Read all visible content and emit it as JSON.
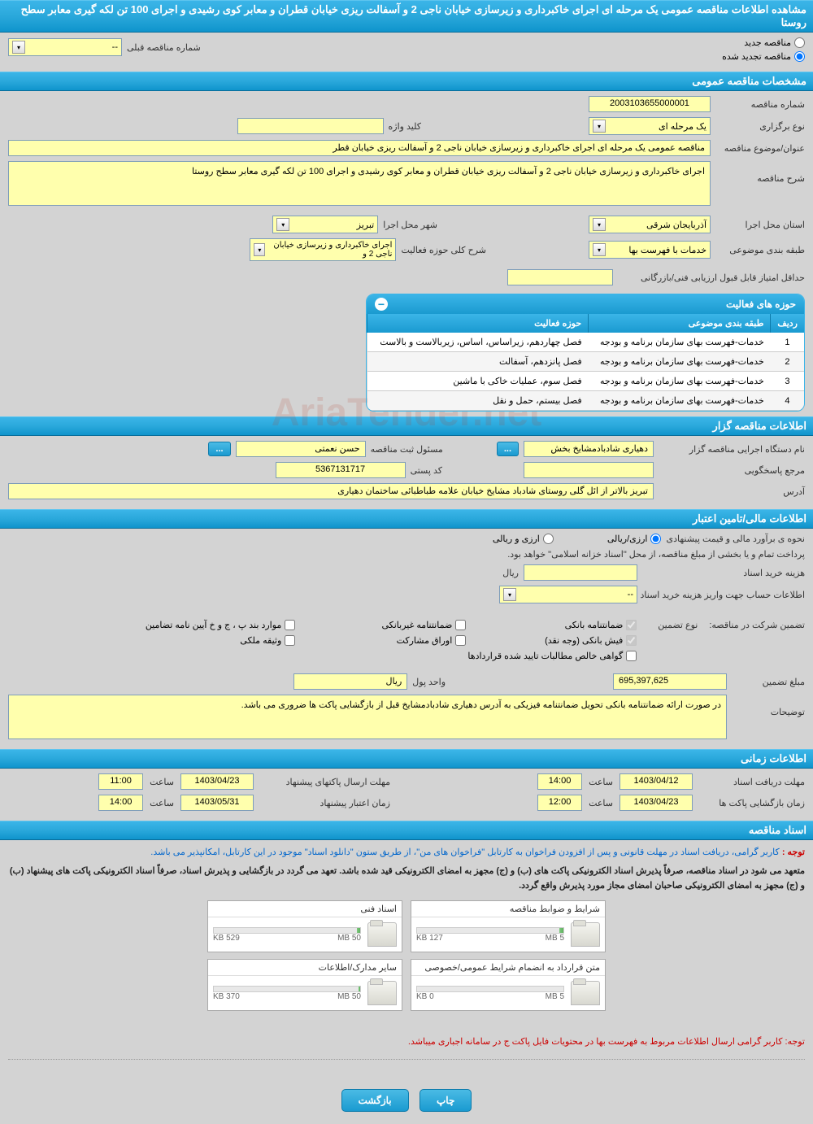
{
  "colors": {
    "header_grad_top": "#3bb5e8",
    "header_grad_bottom": "#0f94cc",
    "yellow_bg": "#ffffad",
    "body_bg": "#d3d3d3",
    "red": "#c00",
    "blue": "#0066cc"
  },
  "title_bar": "مشاهده اطلاعات مناقصه عمومی یک مرحله ای اجرای خاکبرداری و زیرسازی خیابان ناجی 2 و آسفالت ریزی خیابان قطران و معابر کوی رشیدی و اجرای 100 تن لکه گیری معابر سطح روستا",
  "tender_mode": {
    "new_label": "مناقصه جدید",
    "renewed_label": "مناقصه تجدید شده",
    "prev_number_label": "شماره مناقصه قبلی",
    "prev_number_value": "--"
  },
  "sections": {
    "general": "مشخصات مناقصه عمومی",
    "tenderer": "اطلاعات مناقصه گزار",
    "financial": "اطلاعات مالی/تامین اعتبار",
    "timing": "اطلاعات زمانی",
    "documents": "اسناد مناقصه"
  },
  "general": {
    "number_label": "شماره مناقصه",
    "number_value": "2003103655000001",
    "type_label": "نوع برگزاری",
    "type_value": "یک مرحله ای",
    "keyword_label": "کلید واژه",
    "keyword_value": "",
    "subject_label": "عنوان/موضوع مناقصه",
    "subject_value": "مناقصه عمومی یک مرحله ای اجرای خاکبرداری و زیرسازی خیابان ناجی 2 و آسفالت ریزی خیابان قطر",
    "desc_label": "شرح مناقصه",
    "desc_value": "اجرای خاکبرداری و زیرسازی خیابان ناجی 2 و آسفالت ریزی خیابان قطران و معابر کوی رشیدی و اجرای 100 تن لکه گیری معابر سطح روستا",
    "province_label": "استان محل اجرا",
    "province_value": "آذربایجان شرقی",
    "city_label": "شهر محل اجرا",
    "city_value": "تبریز",
    "category_label": "طبقه بندی موضوعی",
    "category_value": "خدمات با فهرست بها",
    "activity_desc_label": "شرح کلی حوزه فعالیت",
    "activity_desc_value": "اجرای خاکبرداری و زیرسازی خیابان ناجی 2 و",
    "min_score_label": "حداقل امتیاز قابل قبول ارزیابی فنی/بازرگانی",
    "min_score_value": ""
  },
  "activities": {
    "box_title": "حوزه های فعالیت",
    "columns": {
      "row": "ردیف",
      "category": "طبقه بندی موضوعی",
      "field": "حوزه فعالیت"
    },
    "rows": [
      {
        "n": "1",
        "cat": "خدمات-فهرست بهای سازمان برنامه و بودجه",
        "field": "فصل چهاردهم، زیراساس، اساس، زیربالاست و بالاست"
      },
      {
        "n": "2",
        "cat": "خدمات-فهرست بهای سازمان برنامه و بودجه",
        "field": "فصل پانزدهم، آسفالت"
      },
      {
        "n": "3",
        "cat": "خدمات-فهرست بهای سازمان برنامه و بودجه",
        "field": "فصل سوم، عملیات خاکی با ماشین"
      },
      {
        "n": "4",
        "cat": "خدمات-فهرست بهای سازمان برنامه و بودجه",
        "field": "فصل بیستم، حمل و نقل"
      }
    ]
  },
  "tenderer": {
    "exec_label": "نام دستگاه اجرایی مناقصه گزار",
    "exec_value": "دهیاری شادبادمشایخ بخش",
    "officer_label": "مسئول ثبت مناقصه",
    "officer_value": "حسن نعمتی",
    "response_label": "مرجع پاسخگویی",
    "response_value": "",
    "postal_label": "کد پستی",
    "postal_value": "5367131717",
    "address_label": "آدرس",
    "address_value": "تبریز بالاتر از ائل گلی روستای شادباد مشایخ خیابان علامه طباطبائی ساختمان دهیاری"
  },
  "financial": {
    "method_label": "نحوه ی برآورد مالی و قیمت پیشنهادی",
    "rial_label": "ارزی/ریالی",
    "currency_label": "ارزی و ریالی",
    "payment_note": "پرداخت تمام و یا بخشی از مبلغ مناقصه، از محل \"اسناد خزانه اسلامی\" خواهد بود.",
    "doc_cost_label": "هزینه خرید اسناد",
    "doc_cost_unit": "ریال",
    "doc_cost_value": "",
    "account_label": "اطلاعات حساب جهت واریز هزینه خرید اسناد",
    "account_value": "--",
    "guarantee_label": "تضمین شرکت در مناقصه:",
    "guarantee_type_label": "نوع تضمین",
    "checkboxes": {
      "bank_guarantee": "ضمانتنامه بانکی",
      "nonbank_guarantee": "ضمانتنامه غیربانکی",
      "bylaw": "موارد بند پ ، ج و خ آیین نامه تضامین",
      "cash": "فیش بانکی (وجه نقد)",
      "participation": "اوراق مشارکت",
      "property_deposit": "وثیقه ملکی",
      "claims": "گواهی خالص مطالبات تایید شده قراردادها"
    },
    "amount_label": "مبلغ تضمین",
    "amount_value": "695,397,625",
    "unit_label": "واحد پول",
    "unit_value": "ریال",
    "notes_label": "توضیحات",
    "notes_value": "در صورت ارائه ضمانتنامه بانکی تحویل ضمانتنامه فیزیکی به آدرس دهیاری شادبادمشایخ قبل از بازگشایی پاکت ها ضروری می باشد."
  },
  "timing": {
    "receive_label": "مهلت دریافت اسناد",
    "receive_date": "1403/04/12",
    "receive_time": "14:00",
    "open_label": "زمان بازگشایی پاکت ها",
    "open_date": "1403/04/23",
    "open_time": "12:00",
    "submit_label": "مهلت ارسال پاکتهای پیشنهاد",
    "submit_date": "1403/04/23",
    "submit_time": "11:00",
    "validity_label": "زمان اعتبار پیشنهاد",
    "validity_date": "1403/05/31",
    "validity_time": "14:00",
    "time_label": "ساعت"
  },
  "documents": {
    "note1_label": "توجه : ",
    "note1": "کاربر گرامی، دریافت اسناد در مهلت قانونی و پس از افزودن فراخوان به کارتابل \"فراخوان های من\"، از طریق ستون \"دانلود اسناد\" موجود در این کارتابل، امکانپذیر می باشد.",
    "commitment": "متعهد می شود در اسناد مناقصه، صرفاً پذیرش اسناد الکترونیکی پاکت های (ب) و (ج) مجهز به امضای الکترونیکی قید شده باشد. تعهد می گردد در بازگشایی و پذیرش اسناد، صرفاً اسناد الکترونیکی پاکت های پیشنهاد (ب) و (ج) مجهز به امضای الکترونیکی صاحبان امضای مجاز مورد پذیرش واقع گردد.",
    "cards": [
      {
        "title": "شرایط و ضوابط مناقصه",
        "size": "127 KB",
        "max": "5 MB",
        "pct": 3
      },
      {
        "title": "اسناد فنی",
        "size": "529 KB",
        "max": "50 MB",
        "pct": 2
      },
      {
        "title": "متن قرارداد به انضمام شرایط عمومی/خصوصی",
        "size": "0 KB",
        "max": "5 MB",
        "pct": 0
      },
      {
        "title": "سایر مدارک/اطلاعات",
        "size": "370 KB",
        "max": "50 MB",
        "pct": 1
      }
    ],
    "footer_note": "توجه: کاربر گرامی ارسال اطلاعات مربوط به فهرست بها در محتویات فایل پاکت ج در سامانه اجباری میباشد."
  },
  "buttons": {
    "print": "چاپ",
    "back": "بازگشت"
  },
  "watermark": "AriaTender.net"
}
